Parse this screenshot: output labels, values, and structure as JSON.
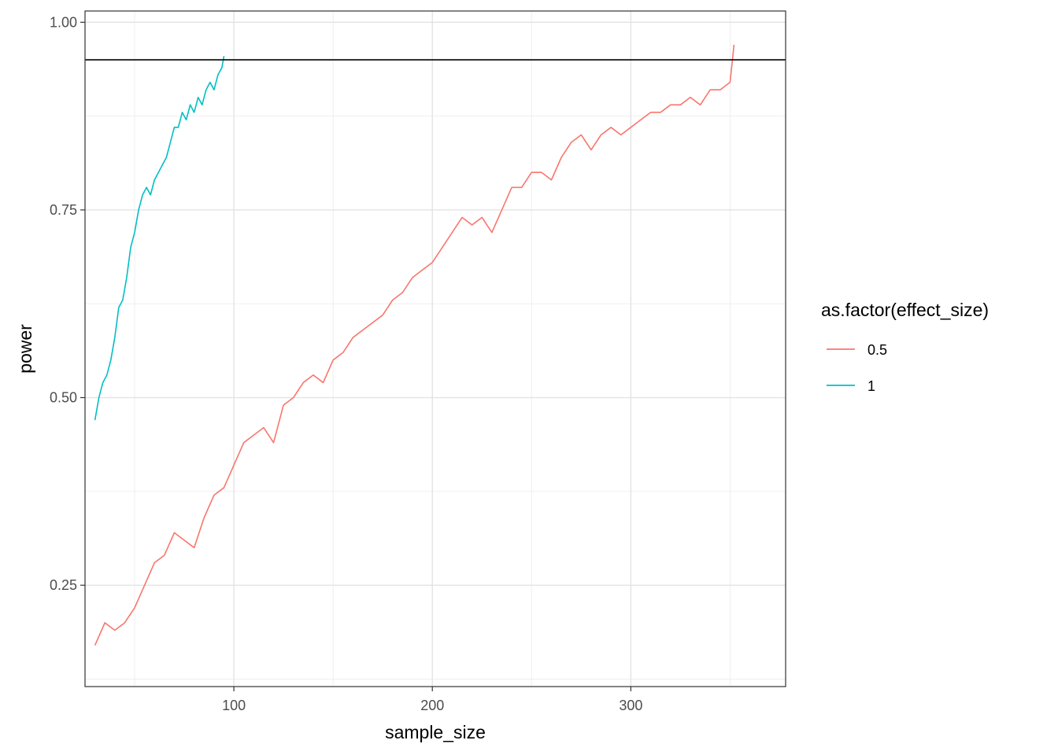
{
  "chart_data": {
    "type": "line",
    "xlabel": "sample_size",
    "ylabel": "power",
    "xlim": [
      25,
      378
    ],
    "ylim": [
      0.115,
      1.015
    ],
    "x_ticks": [
      100,
      200,
      300
    ],
    "x_minor_ticks": [
      50,
      150,
      250,
      350
    ],
    "y_ticks": [
      0.25,
      0.5,
      0.75,
      1.0
    ],
    "y_tick_labels": [
      "0.25",
      "0.50",
      "0.75",
      "1.00"
    ],
    "y_minor_ticks": [
      0.125,
      0.375,
      0.625,
      0.875
    ],
    "grid": true,
    "legend": {
      "title": "as.factor(effect_size)",
      "position": "right"
    },
    "hline": {
      "y": 0.95,
      "color": "#000000"
    },
    "series": [
      {
        "name": "0.5",
        "color": "#F8766D",
        "x": [
          30,
          35,
          40,
          45,
          50,
          55,
          60,
          65,
          70,
          75,
          80,
          85,
          90,
          95,
          100,
          105,
          110,
          115,
          120,
          125,
          130,
          135,
          140,
          145,
          150,
          155,
          160,
          165,
          170,
          175,
          180,
          185,
          190,
          195,
          200,
          205,
          210,
          215,
          220,
          225,
          230,
          235,
          240,
          245,
          250,
          255,
          260,
          265,
          270,
          275,
          280,
          285,
          290,
          295,
          300,
          305,
          310,
          315,
          320,
          325,
          330,
          335,
          340,
          345,
          350,
          352
        ],
        "y": [
          0.17,
          0.2,
          0.19,
          0.2,
          0.22,
          0.25,
          0.28,
          0.29,
          0.32,
          0.31,
          0.3,
          0.34,
          0.37,
          0.38,
          0.41,
          0.44,
          0.45,
          0.46,
          0.44,
          0.49,
          0.5,
          0.52,
          0.53,
          0.52,
          0.55,
          0.56,
          0.58,
          0.59,
          0.6,
          0.61,
          0.63,
          0.64,
          0.66,
          0.67,
          0.68,
          0.7,
          0.72,
          0.74,
          0.73,
          0.74,
          0.72,
          0.75,
          0.78,
          0.78,
          0.8,
          0.8,
          0.79,
          0.82,
          0.84,
          0.85,
          0.83,
          0.85,
          0.86,
          0.85,
          0.86,
          0.87,
          0.88,
          0.88,
          0.89,
          0.89,
          0.9,
          0.89,
          0.91,
          0.91,
          0.92,
          0.97
        ]
      },
      {
        "name": "1",
        "color": "#00BFC4",
        "x": [
          30,
          32,
          34,
          36,
          38,
          40,
          42,
          44,
          46,
          48,
          50,
          52,
          54,
          56,
          58,
          60,
          62,
          64,
          66,
          68,
          70,
          72,
          74,
          76,
          78,
          80,
          82,
          84,
          86,
          88,
          90,
          92,
          94,
          95
        ],
        "y": [
          0.47,
          0.5,
          0.52,
          0.53,
          0.55,
          0.58,
          0.62,
          0.63,
          0.66,
          0.7,
          0.72,
          0.75,
          0.77,
          0.78,
          0.77,
          0.79,
          0.8,
          0.81,
          0.82,
          0.84,
          0.86,
          0.86,
          0.88,
          0.87,
          0.89,
          0.88,
          0.9,
          0.89,
          0.91,
          0.92,
          0.91,
          0.93,
          0.94,
          0.955
        ]
      }
    ]
  }
}
